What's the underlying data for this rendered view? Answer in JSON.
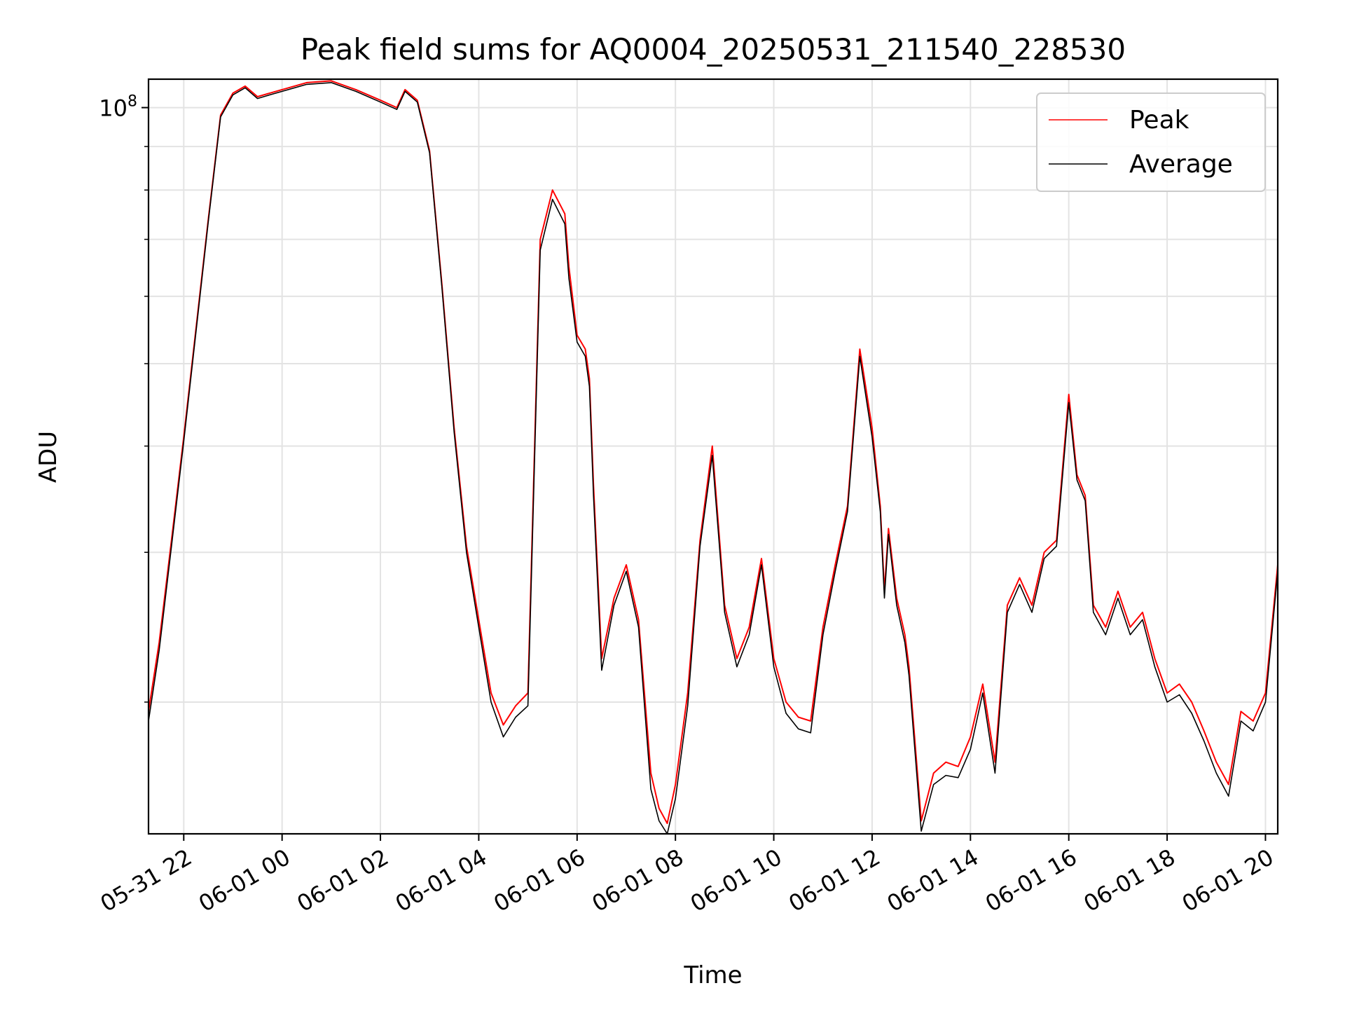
{
  "chart_data": {
    "type": "line",
    "title": "Peak field sums for AQ0004_20250531_211540_228530",
    "xlabel": "Time",
    "ylabel": "ADU",
    "y_scale": "log",
    "ylim": [
      14000000,
      108000000
    ],
    "xlim": [
      "05-31 21:17",
      "06-01 20:15"
    ],
    "x_tick_labels": [
      "05-31 22",
      "06-01 00",
      "06-01 02",
      "06-01 04",
      "06-01 06",
      "06-01 08",
      "06-01 10",
      "06-01 12",
      "06-01 14",
      "06-01 16",
      "06-01 18",
      "06-01 20"
    ],
    "x_ticks": [
      "05-31 22:00",
      "06-01 00:00",
      "06-01 02:00",
      "06-01 04:00",
      "06-01 06:00",
      "06-01 08:00",
      "06-01 10:00",
      "06-01 12:00",
      "06-01 14:00",
      "06-01 16:00",
      "06-01 18:00",
      "06-01 20:00"
    ],
    "y_tick_labels": [
      {
        "value": 100000000,
        "base": "10",
        "exp": "8"
      }
    ],
    "y_minor_ticks": [
      20000000,
      30000000,
      40000000,
      50000000,
      60000000,
      70000000,
      80000000,
      90000000
    ],
    "grid": true,
    "legend_position": "top-right",
    "colors": {
      "Peak": "#ff0000",
      "Average": "#000000"
    },
    "series": [
      {
        "name": "Peak",
        "x": [
          "05-31 21:17",
          "05-31 21:30",
          "05-31 21:45",
          "05-31 22:00",
          "05-31 22:15",
          "05-31 22:30",
          "05-31 22:45",
          "05-31 23:00",
          "05-31 23:15",
          "05-31 23:30",
          "05-31 23:45",
          "06-01 00:00",
          "06-01 00:30",
          "06-01 01:00",
          "06-01 01:30",
          "06-01 02:00",
          "06-01 02:20",
          "06-01 02:30",
          "06-01 02:45",
          "06-01 03:00",
          "06-01 03:15",
          "06-01 03:30",
          "06-01 03:45",
          "06-01 04:00",
          "06-01 04:15",
          "06-01 04:30",
          "06-01 04:45",
          "06-01 05:00",
          "06-01 05:15",
          "06-01 05:30",
          "06-01 05:45",
          "06-01 05:50",
          "06-01 06:00",
          "06-01 06:10",
          "06-01 06:15",
          "06-01 06:20",
          "06-01 06:30",
          "06-01 06:45",
          "06-01 07:00",
          "06-01 07:15",
          "06-01 07:30",
          "06-01 07:40",
          "06-01 07:50",
          "06-01 08:00",
          "06-01 08:15",
          "06-01 08:30",
          "06-01 08:45",
          "06-01 09:00",
          "06-01 09:15",
          "06-01 09:30",
          "06-01 09:45",
          "06-01 10:00",
          "06-01 10:15",
          "06-01 10:30",
          "06-01 10:45",
          "06-01 11:00",
          "06-01 11:15",
          "06-01 11:30",
          "06-01 11:45",
          "06-01 12:00",
          "06-01 12:10",
          "06-01 12:15",
          "06-01 12:20",
          "06-01 12:30",
          "06-01 12:40",
          "06-01 12:45",
          "06-01 13:00",
          "06-01 13:15",
          "06-01 13:30",
          "06-01 13:45",
          "06-01 14:00",
          "06-01 14:15",
          "06-01 14:30",
          "06-01 14:45",
          "06-01 15:00",
          "06-01 15:15",
          "06-01 15:30",
          "06-01 15:45",
          "06-01 16:00",
          "06-01 16:10",
          "06-01 16:20",
          "06-01 16:30",
          "06-01 16:45",
          "06-01 17:00",
          "06-01 17:15",
          "06-01 17:30",
          "06-01 17:45",
          "06-01 18:00",
          "06-01 18:15",
          "06-01 18:30",
          "06-01 18:45",
          "06-01 19:00",
          "06-01 19:15",
          "06-01 19:30",
          "06-01 19:45",
          "06-01 20:00",
          "06-01 20:15"
        ],
        "y": [
          19500000,
          23500000,
          31000000,
          41000000,
          55000000,
          74000000,
          98000000,
          104000000,
          106000000,
          103000000,
          104000000,
          105000000,
          107000000,
          107500000,
          105000000,
          102000000,
          100000000,
          105000000,
          102000000,
          89000000,
          62000000,
          42000000,
          30500000,
          25000000,
          20500000,
          18800000,
          19800000,
          20500000,
          70000000,
          80000000,
          75000000,
          65000000,
          54000000,
          52000000,
          48000000,
          36000000,
          22500000,
          26500000,
          29000000,
          25000000,
          16500000,
          15000000,
          14400000,
          16000000,
          20500000,
          31000000,
          40000000,
          26000000,
          22500000,
          24500000,
          29500000,
          22500000,
          20000000,
          19200000,
          19000000,
          24500000,
          29000000,
          34000000,
          52000000,
          42000000,
          34000000,
          27000000,
          32000000,
          26500000,
          24000000,
          22000000,
          14500000,
          16500000,
          17000000,
          16800000,
          18200000,
          21000000,
          17000000,
          26000000,
          28000000,
          26000000,
          30000000,
          31000000,
          46000000,
          37000000,
          35000000,
          26000000,
          24500000,
          27000000,
          24500000,
          25500000,
          22500000,
          20500000,
          21000000,
          20000000,
          18500000,
          17000000,
          16000000,
          19500000,
          19000000,
          20500000,
          29000000
        ]
      },
      {
        "name": "Average",
        "x": [
          "05-31 21:17",
          "05-31 21:30",
          "05-31 21:45",
          "05-31 22:00",
          "05-31 22:15",
          "05-31 22:30",
          "05-31 22:45",
          "05-31 23:00",
          "05-31 23:15",
          "05-31 23:30",
          "05-31 23:45",
          "06-01 00:00",
          "06-01 00:30",
          "06-01 01:00",
          "06-01 01:30",
          "06-01 02:00",
          "06-01 02:20",
          "06-01 02:30",
          "06-01 02:45",
          "06-01 03:00",
          "06-01 03:15",
          "06-01 03:30",
          "06-01 03:45",
          "06-01 04:00",
          "06-01 04:15",
          "06-01 04:30",
          "06-01 04:45",
          "06-01 05:00",
          "06-01 05:15",
          "06-01 05:30",
          "06-01 05:45",
          "06-01 05:50",
          "06-01 06:00",
          "06-01 06:10",
          "06-01 06:15",
          "06-01 06:20",
          "06-01 06:30",
          "06-01 06:45",
          "06-01 07:00",
          "06-01 07:15",
          "06-01 07:30",
          "06-01 07:40",
          "06-01 07:50",
          "06-01 08:00",
          "06-01 08:15",
          "06-01 08:30",
          "06-01 08:45",
          "06-01 09:00",
          "06-01 09:15",
          "06-01 09:30",
          "06-01 09:45",
          "06-01 10:00",
          "06-01 10:15",
          "06-01 10:30",
          "06-01 10:45",
          "06-01 11:00",
          "06-01 11:15",
          "06-01 11:30",
          "06-01 11:45",
          "06-01 12:00",
          "06-01 12:10",
          "06-01 12:15",
          "06-01 12:20",
          "06-01 12:30",
          "06-01 12:40",
          "06-01 12:45",
          "06-01 13:00",
          "06-01 13:15",
          "06-01 13:30",
          "06-01 13:45",
          "06-01 14:00",
          "06-01 14:15",
          "06-01 14:30",
          "06-01 14:45",
          "06-01 15:00",
          "06-01 15:15",
          "06-01 15:30",
          "06-01 15:45",
          "06-01 16:00",
          "06-01 16:10",
          "06-01 16:20",
          "06-01 16:30",
          "06-01 16:45",
          "06-01 17:00",
          "06-01 17:15",
          "06-01 17:30",
          "06-01 17:45",
          "06-01 18:00",
          "06-01 18:15",
          "06-01 18:30",
          "06-01 18:45",
          "06-01 19:00",
          "06-01 19:15",
          "06-01 19:30",
          "06-01 19:45",
          "06-01 20:00",
          "06-01 20:15"
        ],
        "y": [
          19000000,
          23000000,
          30500000,
          40500000,
          54500000,
          73500000,
          97500000,
          103500000,
          105500000,
          102500000,
          103500000,
          104500000,
          106500000,
          107000000,
          104500000,
          101500000,
          99500000,
          104500000,
          101500000,
          88500000,
          61500000,
          41500000,
          30000000,
          24500000,
          20000000,
          18200000,
          19200000,
          19800000,
          68000000,
          78000000,
          73000000,
          63000000,
          53000000,
          51000000,
          47000000,
          35000000,
          21800000,
          26000000,
          28500000,
          24500000,
          15800000,
          14500000,
          14000000,
          15400000,
          19800000,
          30500000,
          39000000,
          25500000,
          22000000,
          24000000,
          29000000,
          22000000,
          19400000,
          18600000,
          18400000,
          24000000,
          28500000,
          33500000,
          51000000,
          41000000,
          33500000,
          26500000,
          31500000,
          26000000,
          23500000,
          21500000,
          14100000,
          16000000,
          16400000,
          16300000,
          17600000,
          20500000,
          16500000,
          25500000,
          27500000,
          25500000,
          29500000,
          30500000,
          45000000,
          36500000,
          34500000,
          25500000,
          24000000,
          26500000,
          24000000,
          25000000,
          22000000,
          20000000,
          20400000,
          19400000,
          18000000,
          16500000,
          15500000,
          19000000,
          18500000,
          20000000,
          28500000
        ]
      }
    ]
  }
}
